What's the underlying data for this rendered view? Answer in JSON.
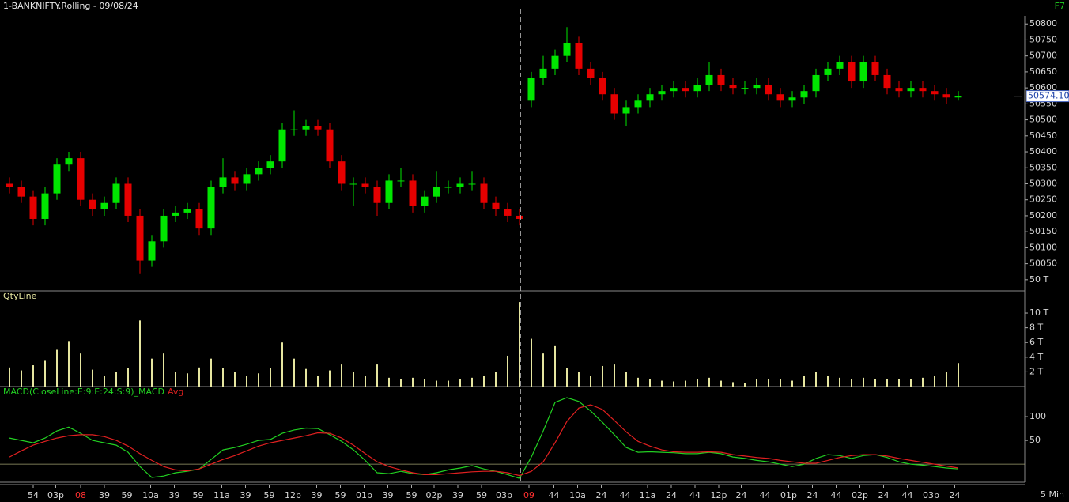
{
  "chart_data": [
    {
      "type": "candlestick",
      "title": "1-BANKNIFTY.Rolling - 09/08/24",
      "shortcut": "F7",
      "up_color": "#00e600",
      "down_color": "#e60000",
      "open": [
        50300,
        50290,
        50260,
        50190,
        50270,
        50360,
        50380,
        50250,
        50220,
        50240,
        50300,
        50200,
        50060,
        50120,
        50200,
        50210,
        50220,
        50160,
        50290,
        50320,
        50300,
        50330,
        50350,
        50370,
        50470,
        50470,
        50480,
        50470,
        50370,
        50300,
        50300,
        50290,
        50240,
        50310,
        50310,
        50230,
        50260,
        50290,
        50290,
        50300,
        50300,
        50240,
        50220,
        50200,
        50560,
        50630,
        50660,
        50700,
        50740,
        50660,
        50630,
        50580,
        50520,
        50540,
        50560,
        50580,
        50590,
        50600,
        50590,
        50610,
        50640,
        50610,
        50600,
        50600,
        50610,
        50580,
        50560,
        50570,
        50590,
        50640,
        50660,
        50680,
        50620,
        50680,
        50640,
        50600,
        50590,
        50600,
        50590,
        50580,
        50570
      ],
      "high": [
        50320,
        50310,
        50280,
        50290,
        50380,
        50400,
        50400,
        50270,
        50260,
        50320,
        50320,
        50220,
        50140,
        50220,
        50230,
        50240,
        50240,
        50310,
        50380,
        50340,
        50350,
        50370,
        50390,
        50490,
        50530,
        50500,
        50500,
        50490,
        50390,
        50320,
        50320,
        50310,
        50330,
        50350,
        50330,
        50280,
        50340,
        50310,
        50320,
        50340,
        50320,
        50260,
        50240,
        50220,
        50650,
        50700,
        50720,
        50790,
        50760,
        50680,
        50650,
        50600,
        50560,
        50580,
        50600,
        50610,
        50620,
        50620,
        50630,
        50680,
        50660,
        50630,
        50620,
        50630,
        50630,
        50600,
        50590,
        50610,
        50660,
        50680,
        50700,
        50700,
        50700,
        50700,
        50660,
        50620,
        50620,
        50620,
        50610,
        50600,
        50590
      ],
      "low": [
        50270,
        50240,
        50170,
        50170,
        50250,
        50340,
        50230,
        50200,
        50200,
        50220,
        50180,
        50020,
        50040,
        50100,
        50180,
        50190,
        50140,
        50140,
        50270,
        50280,
        50280,
        50310,
        50330,
        50350,
        50450,
        50450,
        50450,
        50350,
        50280,
        50230,
        50270,
        50200,
        50220,
        50290,
        50210,
        50210,
        50240,
        50270,
        50270,
        50280,
        50220,
        50200,
        50180,
        50170,
        50540,
        50610,
        50640,
        50680,
        50640,
        50610,
        50560,
        50500,
        50480,
        50520,
        50540,
        50560,
        50570,
        50570,
        50570,
        50590,
        50590,
        50580,
        50580,
        50580,
        50560,
        50540,
        50540,
        50550,
        50570,
        50620,
        50640,
        50600,
        50600,
        50620,
        50580,
        50570,
        50570,
        50570,
        50560,
        50550,
        50560
      ],
      "close": [
        50290,
        50260,
        50190,
        50270,
        50360,
        50380,
        50250,
        50220,
        50240,
        50300,
        50200,
        50060,
        50120,
        50200,
        50210,
        50220,
        50160,
        50290,
        50320,
        50300,
        50330,
        50350,
        50370,
        50470,
        50470,
        50480,
        50470,
        50370,
        50300,
        50300,
        50290,
        50240,
        50310,
        50310,
        50230,
        50260,
        50290,
        50290,
        50300,
        50300,
        50240,
        50220,
        50200,
        50190,
        50630,
        50660,
        50700,
        50740,
        50660,
        50630,
        50580,
        50520,
        50540,
        50560,
        50580,
        50590,
        50600,
        50590,
        50610,
        50640,
        50610,
        50600,
        50600,
        50610,
        50580,
        50560,
        50570,
        50590,
        50640,
        50660,
        50680,
        50620,
        50680,
        50640,
        50600,
        50590,
        50600,
        50590,
        50580,
        50570,
        50574.1
      ],
      "last_price_label": "50574.10",
      "ylim": [
        49965,
        50850
      ],
      "yticks": [
        {
          "value": 50000,
          "label": "50 T"
        },
        50050,
        50100,
        50150,
        50200,
        50250,
        50300,
        50350,
        50400,
        50450,
        50500,
        50550,
        50600,
        50650,
        50700,
        50750,
        50800
      ],
      "day_breaks": [
        5.7,
        43.1
      ]
    },
    {
      "type": "bar",
      "title": "QtyLine",
      "color": "#e6e6a0",
      "values": [
        2.6,
        2.2,
        2.9,
        3.5,
        5.0,
        6.2,
        4.5,
        2.3,
        1.5,
        2.0,
        2.5,
        9.0,
        3.8,
        4.5,
        2.0,
        1.8,
        2.6,
        3.8,
        2.5,
        2.0,
        1.5,
        1.8,
        2.5,
        6.0,
        3.8,
        2.4,
        1.5,
        2.2,
        3.0,
        2.0,
        1.5,
        3.0,
        1.2,
        1.0,
        1.2,
        1.0,
        0.8,
        0.8,
        1.0,
        1.2,
        1.5,
        2.0,
        4.2,
        11.5,
        6.5,
        4.5,
        5.5,
        2.5,
        2.0,
        1.5,
        2.8,
        3.0,
        2.0,
        1.2,
        1.0,
        0.8,
        0.7,
        0.8,
        1.0,
        1.2,
        0.8,
        0.6,
        0.5,
        1.0,
        1.0,
        1.0,
        0.8,
        1.5,
        2.0,
        1.5,
        1.2,
        1.0,
        1.2,
        1.0,
        1.0,
        1.0,
        1.0,
        1.2,
        1.5,
        2.0,
        3.2
      ],
      "ylim": [
        0,
        12.8
      ],
      "yticks": [
        {
          "value": 2,
          "label": "2 T"
        },
        {
          "value": 4,
          "label": "4 T"
        },
        {
          "value": 6,
          "label": "6 T"
        },
        {
          "value": 8,
          "label": "8 T"
        },
        {
          "value": 10,
          "label": "10 T"
        }
      ]
    },
    {
      "type": "line",
      "zero_line": true,
      "series": [
        {
          "name": "MACD(CloseLine:E:9:E:24:S:9)_MACD",
          "color": "#22d022",
          "values": [
            55,
            50,
            45,
            55,
            70,
            78,
            65,
            50,
            45,
            40,
            25,
            -5,
            -28,
            -25,
            -18,
            -15,
            -10,
            10,
            30,
            35,
            42,
            50,
            52,
            65,
            72,
            76,
            75,
            62,
            48,
            30,
            8,
            -18,
            -20,
            -15,
            -20,
            -22,
            -18,
            -12,
            -8,
            -3,
            -10,
            -15,
            -22,
            -30,
            15,
            70,
            130,
            140,
            132,
            112,
            88,
            62,
            35,
            25,
            26,
            25,
            24,
            22,
            22,
            25,
            22,
            15,
            12,
            8,
            5,
            0,
            -5,
            0,
            12,
            20,
            18,
            12,
            18,
            20,
            14,
            5,
            0,
            -2,
            -5,
            -8,
            -10
          ]
        },
        {
          "name": "Avg",
          "color": "#e02020",
          "values": [
            15,
            28,
            40,
            48,
            55,
            60,
            62,
            62,
            58,
            50,
            38,
            22,
            8,
            -5,
            -12,
            -14,
            -10,
            0,
            10,
            18,
            28,
            38,
            45,
            50,
            55,
            60,
            66,
            65,
            55,
            40,
            22,
            5,
            -5,
            -12,
            -18,
            -22,
            -22,
            -20,
            -18,
            -16,
            -15,
            -15,
            -18,
            -24,
            -15,
            5,
            45,
            90,
            118,
            125,
            115,
            92,
            68,
            48,
            38,
            30,
            26,
            25,
            25,
            26,
            25,
            20,
            17,
            14,
            12,
            8,
            5,
            2,
            2,
            8,
            14,
            18,
            20,
            20,
            17,
            12,
            8,
            4,
            0,
            -4,
            -8
          ]
        }
      ],
      "ylim": [
        -38,
        160
      ],
      "yticks": [
        50,
        100
      ],
      "xlim": [
        -0.5,
        80.5
      ],
      "xticks": [
        {
          "value": 2.0,
          "label": "54"
        },
        {
          "value": 3.9,
          "label": "03p"
        },
        {
          "value": 6.0,
          "label": "08",
          "color": "#ff3030"
        },
        {
          "value": 8.0,
          "label": "39"
        },
        {
          "value": 9.9,
          "label": "59"
        },
        {
          "value": 11.9,
          "label": "10a"
        },
        {
          "value": 13.9,
          "label": "39"
        },
        {
          "value": 15.9,
          "label": "59"
        },
        {
          "value": 17.9,
          "label": "11a"
        },
        {
          "value": 19.9,
          "label": "39"
        },
        {
          "value": 21.9,
          "label": "59"
        },
        {
          "value": 23.9,
          "label": "12p"
        },
        {
          "value": 25.9,
          "label": "39"
        },
        {
          "value": 27.9,
          "label": "59"
        },
        {
          "value": 29.9,
          "label": "01p"
        },
        {
          "value": 31.9,
          "label": "39"
        },
        {
          "value": 33.9,
          "label": "59"
        },
        {
          "value": 35.8,
          "label": "02p"
        },
        {
          "value": 37.8,
          "label": "39"
        },
        {
          "value": 39.8,
          "label": "59"
        },
        {
          "value": 41.7,
          "label": "03p"
        },
        {
          "value": 43.8,
          "label": "09",
          "color": "#ff3030"
        },
        {
          "value": 45.9,
          "label": "44"
        },
        {
          "value": 47.9,
          "label": "10a"
        },
        {
          "value": 49.9,
          "label": "24"
        },
        {
          "value": 51.9,
          "label": "44"
        },
        {
          "value": 53.8,
          "label": "11a"
        },
        {
          "value": 55.8,
          "label": "24"
        },
        {
          "value": 57.8,
          "label": "44"
        },
        {
          "value": 59.8,
          "label": "12p"
        },
        {
          "value": 61.7,
          "label": "24"
        },
        {
          "value": 63.7,
          "label": "44"
        },
        {
          "value": 65.7,
          "label": "01p"
        },
        {
          "value": 67.7,
          "label": "24"
        },
        {
          "value": 69.7,
          "label": "44"
        },
        {
          "value": 71.7,
          "label": "02p"
        },
        {
          "value": 73.7,
          "label": "24"
        },
        {
          "value": 75.7,
          "label": "44"
        },
        {
          "value": 77.7,
          "label": "03p"
        },
        {
          "value": 79.7,
          "label": "24"
        }
      ],
      "interval": "5 Min"
    }
  ]
}
